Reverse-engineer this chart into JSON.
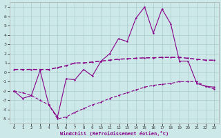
{
  "xlabel": "Windchill (Refroidissement éolien,°C)",
  "bg_color": "#cce8e8",
  "grid_color": "#aacccc",
  "line_color": "#880088",
  "xlim": [
    -0.5,
    23.5
  ],
  "ylim": [
    -5.5,
    7.5
  ],
  "xticks": [
    0,
    1,
    2,
    3,
    4,
    5,
    6,
    7,
    8,
    9,
    10,
    11,
    12,
    13,
    14,
    15,
    16,
    17,
    18,
    19,
    20,
    21,
    22,
    23
  ],
  "yticks": [
    -5,
    -4,
    -3,
    -2,
    -1,
    0,
    1,
    2,
    3,
    4,
    5,
    6,
    7
  ],
  "line1_x": [
    0,
    1,
    2,
    3,
    4,
    5,
    6,
    7,
    8,
    9,
    10,
    11,
    12,
    13,
    14,
    15,
    16,
    17,
    18,
    19,
    20,
    21,
    22,
    23
  ],
  "line1_y": [
    -2.0,
    -2.8,
    -2.5,
    0.2,
    -3.5,
    -4.8,
    -0.7,
    -0.8,
    0.3,
    -0.4,
    1.2,
    2.0,
    3.6,
    3.3,
    5.8,
    7.0,
    4.2,
    6.8,
    5.2,
    1.2,
    1.2,
    -1.2,
    -1.5,
    -1.6
  ],
  "line2_x": [
    0,
    1,
    2,
    3,
    4,
    5,
    6,
    7,
    8,
    9,
    10,
    11,
    12,
    13,
    14,
    15,
    16,
    17,
    18,
    19,
    20,
    21,
    22,
    23
  ],
  "line2_y": [
    0.3,
    0.3,
    0.3,
    0.3,
    0.3,
    0.5,
    0.7,
    1.0,
    1.0,
    1.1,
    1.2,
    1.3,
    1.4,
    1.45,
    1.5,
    1.55,
    1.55,
    1.6,
    1.6,
    1.6,
    1.5,
    1.4,
    1.3,
    1.3
  ],
  "line3_x": [
    0,
    1,
    2,
    3,
    4,
    5,
    6,
    7,
    8,
    9,
    10,
    11,
    12,
    13,
    14,
    15,
    16,
    17,
    18,
    19,
    20,
    21,
    22,
    23
  ],
  "line3_y": [
    -2.0,
    -2.2,
    -2.5,
    -3.0,
    -3.5,
    -5.0,
    -4.8,
    -4.3,
    -3.9,
    -3.5,
    -3.2,
    -2.8,
    -2.5,
    -2.2,
    -1.9,
    -1.6,
    -1.4,
    -1.3,
    -1.2,
    -1.0,
    -1.0,
    -1.0,
    -1.5,
    -1.8
  ],
  "linewidth": 0.8,
  "markersize": 2.0
}
